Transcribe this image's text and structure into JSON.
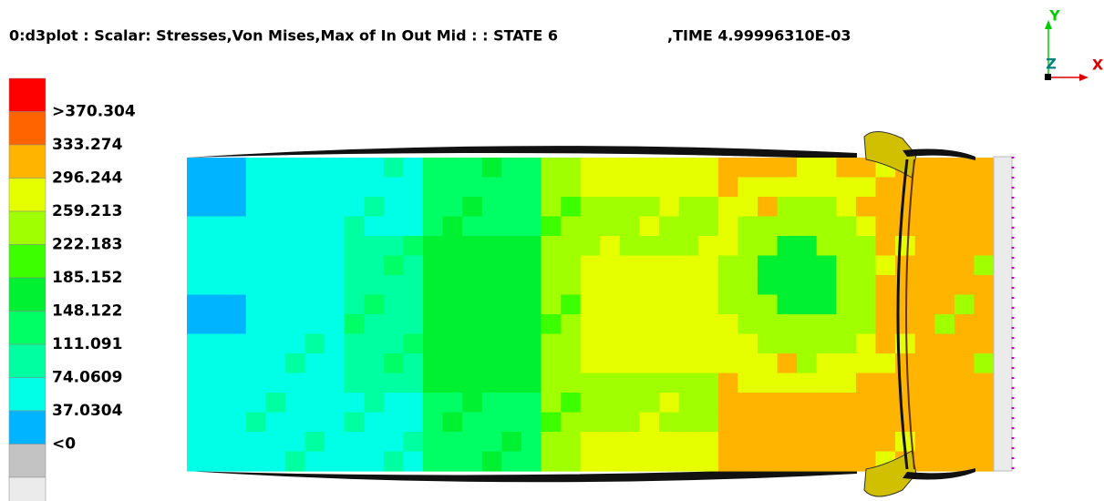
{
  "header": {
    "title": "0:d3plot : Scalar: Stresses,Von Mises,Max of In Out Mid : : STATE 6",
    "time": ",TIME 4.99996310E-03"
  },
  "legend": {
    "colors": [
      "#ff0000",
      "#ff6400",
      "#ffb400",
      "#e6ff00",
      "#a0ff00",
      "#3cff00",
      "#00f032",
      "#00ff64",
      "#00ffa0",
      "#00ffe6",
      "#00b4ff",
      "#c3c3c3",
      "#ebebeb"
    ],
    "labels": [
      ">370.304",
      "333.274",
      "296.244",
      "259.213",
      "222.183",
      "185.152",
      "148.122",
      "111.091",
      "74.0609",
      "37.0304",
      "<0"
    ]
  },
  "triad": {
    "y": "Y",
    "z": "Z",
    "x": "X"
  }
}
